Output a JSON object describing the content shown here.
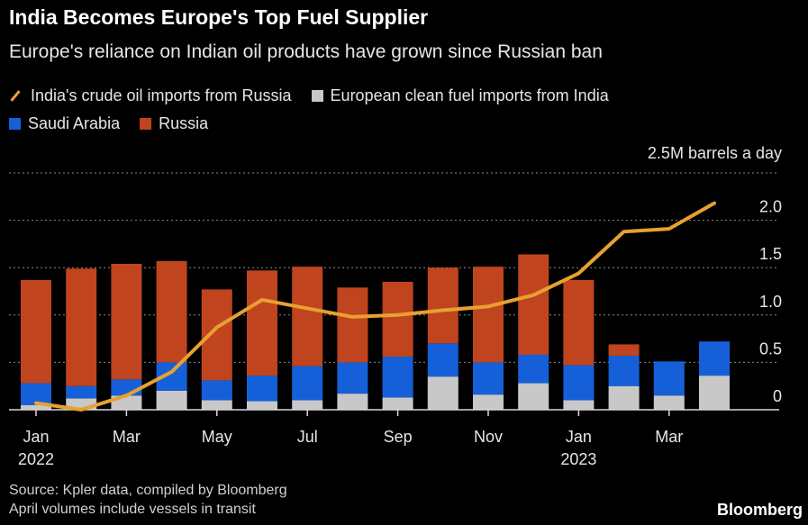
{
  "header": {
    "title": "India Becomes Europe's Top Fuel Supplier",
    "subtitle": "Europe's reliance on Indian oil products have grown since Russian ban"
  },
  "legend": {
    "line_label": "India's crude oil imports from Russia",
    "gray_label": "European clean fuel imports from India",
    "blue_label": "Saudi Arabia",
    "red_label": "Russia"
  },
  "unit_label": "2.5M barrels a day",
  "footer": {
    "source": "Source: Kpler data, compiled by Bloomberg",
    "note": "April volumes include vessels in transit",
    "brand": "Bloomberg"
  },
  "colors": {
    "line": "#e8a030",
    "gray": "#c8c8c8",
    "blue": "#1560d8",
    "red": "#c0441e",
    "grid": "#8a8a8a",
    "text": "#e6e6e6"
  },
  "chart_data": {
    "type": "bar",
    "stacked": true,
    "ylim": [
      0,
      2.5
    ],
    "y_ticks": [
      "0",
      "0.5",
      "1.0",
      "1.5",
      "2.0"
    ],
    "x_tick_labels": [
      {
        "index": 0,
        "lines": [
          "Jan",
          "2022"
        ]
      },
      {
        "index": 2,
        "lines": [
          "Mar"
        ]
      },
      {
        "index": 4,
        "lines": [
          "May"
        ]
      },
      {
        "index": 6,
        "lines": [
          "Jul"
        ]
      },
      {
        "index": 8,
        "lines": [
          "Sep"
        ]
      },
      {
        "index": 10,
        "lines": [
          "Nov"
        ]
      },
      {
        "index": 12,
        "lines": [
          "Jan",
          "2023"
        ]
      },
      {
        "index": 14,
        "lines": [
          "Mar"
        ]
      }
    ],
    "categories": [
      "Jan 2022",
      "Feb 2022",
      "Mar 2022",
      "Apr 2022",
      "May 2022",
      "Jun 2022",
      "Jul 2022",
      "Aug 2022",
      "Sep 2022",
      "Oct 2022",
      "Nov 2022",
      "Dec 2022",
      "Jan 2023",
      "Feb 2023",
      "Mar 2023",
      "Apr 2023"
    ],
    "series": [
      {
        "name": "European clean fuel imports from India",
        "kind": "bar",
        "values": [
          0.05,
          0.12,
          0.15,
          0.2,
          0.1,
          0.09,
          0.1,
          0.17,
          0.13,
          0.35,
          0.16,
          0.28,
          0.1,
          0.25,
          0.15,
          0.36
        ]
      },
      {
        "name": "Saudi Arabia",
        "kind": "bar",
        "values": [
          0.23,
          0.13,
          0.17,
          0.3,
          0.21,
          0.27,
          0.36,
          0.33,
          0.43,
          0.35,
          0.34,
          0.3,
          0.37,
          0.32,
          0.36,
          0.36
        ]
      },
      {
        "name": "Russia",
        "kind": "bar",
        "values": [
          1.09,
          1.24,
          1.22,
          1.07,
          0.96,
          1.11,
          1.05,
          0.79,
          0.79,
          0.8,
          1.01,
          1.06,
          0.9,
          0.12,
          0.0,
          0.0
        ]
      },
      {
        "name": "India's crude oil imports from Russia",
        "kind": "line",
        "values": [
          0.07,
          0.0,
          0.15,
          0.4,
          0.87,
          1.16,
          1.07,
          0.98,
          1.0,
          1.05,
          1.09,
          1.21,
          1.44,
          1.88,
          1.91,
          2.18
        ]
      }
    ]
  }
}
